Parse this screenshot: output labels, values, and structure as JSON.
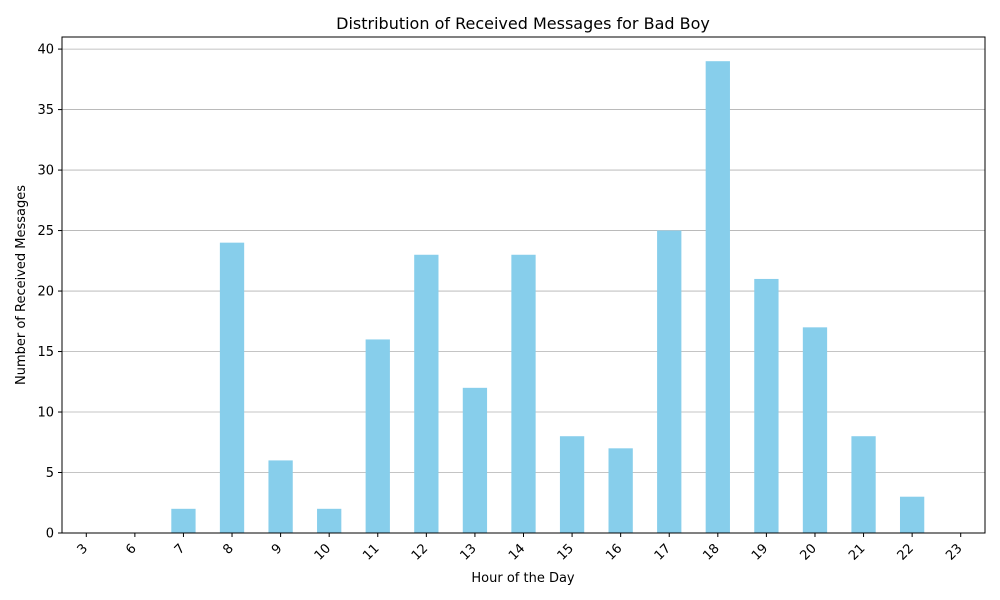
{
  "chart_data": {
    "type": "bar",
    "title": "Distribution of Received Messages for Bad Boy",
    "xlabel": "Hour of the Day",
    "ylabel": "Number of Received Messages",
    "categories": [
      "3",
      "6",
      "7",
      "8",
      "9",
      "10",
      "11",
      "12",
      "13",
      "14",
      "15",
      "16",
      "17",
      "18",
      "19",
      "20",
      "21",
      "22",
      "23"
    ],
    "values": [
      0,
      0,
      2,
      24,
      6,
      2,
      16,
      23,
      12,
      23,
      8,
      7,
      25,
      39,
      21,
      17,
      8,
      3,
      0
    ],
    "ylim": [
      0,
      41
    ],
    "yticks": [
      0,
      5,
      10,
      15,
      20,
      25,
      30,
      35,
      40
    ],
    "grid": "y",
    "bar_color": "#87ceeb",
    "grid_color": "#b0b0b0",
    "legend": "none"
  }
}
